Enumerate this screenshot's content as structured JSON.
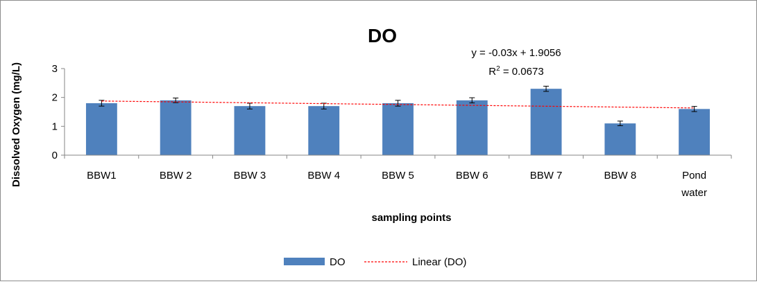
{
  "chart_data": {
    "type": "bar",
    "title": "DO",
    "xlabel": "sampling points",
    "ylabel": "Dissolved Oxygen (mg/L)",
    "ylim": [
      0,
      3
    ],
    "yticks": [
      "0",
      "1",
      "2",
      "3"
    ],
    "categories": [
      [
        "BBW1"
      ],
      [
        "BBW 2"
      ],
      [
        "BBW 3"
      ],
      [
        "BBW 4"
      ],
      [
        "BBW 5"
      ],
      [
        "BBW 6"
      ],
      [
        "BBW 7"
      ],
      [
        "BBW 8"
      ],
      [
        "Pond",
        "water"
      ]
    ],
    "series": [
      {
        "name": "DO",
        "values": [
          1.8,
          1.9,
          1.7,
          1.7,
          1.8,
          1.9,
          2.3,
          1.1,
          1.6
        ],
        "error": [
          0.1,
          0.08,
          0.1,
          0.1,
          0.1,
          0.09,
          0.09,
          0.08,
          0.09
        ],
        "color": "#4f81bd"
      }
    ],
    "trendline": {
      "name": "Linear (DO)",
      "slope": -0.03,
      "intercept": 1.9056,
      "color": "#ff0000",
      "equation": "y = -0.03x + 1.9056",
      "r2_prefix": "R",
      "r2_sup": "2",
      "r2_value": " = 0.0673"
    },
    "legend": {
      "placement": "bottom",
      "items": [
        {
          "label": "DO",
          "kind": "bar",
          "color": "#4f81bd"
        },
        {
          "label": "Linear (DO)",
          "kind": "dashed-line",
          "color": "#ff0000"
        }
      ]
    },
    "grid": false
  }
}
